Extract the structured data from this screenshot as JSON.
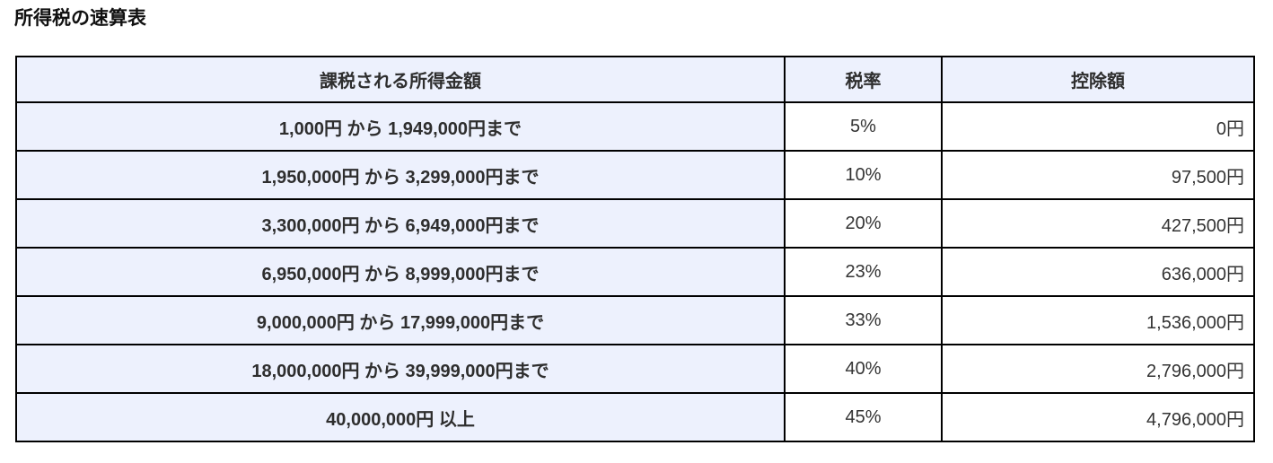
{
  "page": {
    "title": "所得税の速算表"
  },
  "colors": {
    "header_and_income_bg": "#edf1fd",
    "cell_bg": "#ffffff",
    "border": "#000000",
    "text": "#333333"
  },
  "table": {
    "headers": {
      "income": "課税される所得金額",
      "rate": "税率",
      "deduction": "控除額"
    },
    "rows": [
      {
        "income": "1,000円 から 1,949,000円まで",
        "rate": "5%",
        "deduction": "0円"
      },
      {
        "income": "1,950,000円 から 3,299,000円まで",
        "rate": "10%",
        "deduction": "97,500円"
      },
      {
        "income": "3,300,000円 から 6,949,000円まで",
        "rate": "20%",
        "deduction": "427,500円"
      },
      {
        "income": "6,950,000円 から 8,999,000円まで",
        "rate": "23%",
        "deduction": "636,000円"
      },
      {
        "income": "9,000,000円 から 17,999,000円まで",
        "rate": "33%",
        "deduction": "1,536,000円"
      },
      {
        "income": "18,000,000円 から 39,999,000円まで",
        "rate": "40%",
        "deduction": "2,796,000円"
      },
      {
        "income": "40,000,000円 以上",
        "rate": "45%",
        "deduction": "4,796,000円"
      }
    ]
  }
}
